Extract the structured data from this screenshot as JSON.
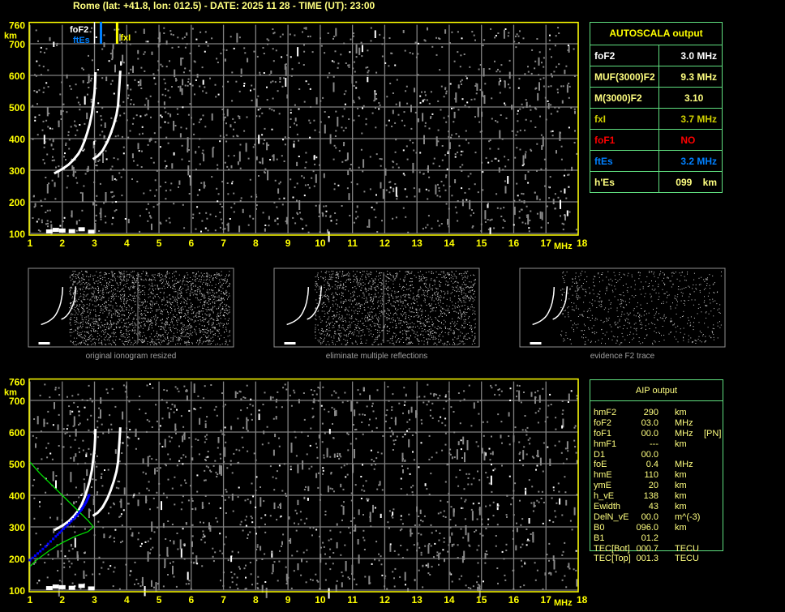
{
  "header": {
    "title": "Rome (lat: +41.8, lon: 012.5) - DATE: 2025 11 28 - TIME (UT): 23:00"
  },
  "colors": {
    "axis": "#ffff00",
    "grid": "#808080",
    "o_trace": "#ffffff",
    "foF2_marker": "#ffffff",
    "ftEs_marker": "#0080ff",
    "fxI_marker": "#ffff00",
    "profile": "#00e000",
    "aip_trace": "#0000ff",
    "table_border": "#60e080"
  },
  "chart_data": [
    {
      "type": "scatter",
      "name": "ionogram-autoscala",
      "xlim": [
        1,
        18
      ],
      "ylim": [
        100,
        760
      ],
      "xlabel": "MHz",
      "ylabel": "km",
      "xticks": [
        "1",
        "2",
        "3",
        "4",
        "5",
        "6",
        "7",
        "8",
        "9",
        "10",
        "11",
        "12",
        "13",
        "14",
        "15",
        "16",
        "17",
        "18"
      ],
      "yticks": [
        "760",
        "700",
        "600",
        "500",
        "400",
        "300",
        "200",
        "100"
      ],
      "grid": true,
      "o_trace": [
        [
          1.75,
          290
        ],
        [
          1.9,
          298
        ],
        [
          2.05,
          307
        ],
        [
          2.2,
          318
        ],
        [
          2.35,
          333
        ],
        [
          2.5,
          352
        ],
        [
          2.6,
          370
        ],
        [
          2.7,
          395
        ],
        [
          2.78,
          420
        ],
        [
          2.85,
          445
        ],
        [
          2.92,
          480
        ],
        [
          2.97,
          520
        ],
        [
          3.0,
          545
        ],
        [
          3.02,
          580
        ],
        [
          3.03,
          610
        ]
      ],
      "x_trace": [
        [
          2.95,
          335
        ],
        [
          3.1,
          345
        ],
        [
          3.25,
          362
        ],
        [
          3.4,
          390
        ],
        [
          3.5,
          415
        ],
        [
          3.6,
          445
        ],
        [
          3.68,
          475
        ],
        [
          3.73,
          505
        ],
        [
          3.75,
          535
        ],
        [
          3.78,
          580
        ],
        [
          3.8,
          615
        ]
      ],
      "es_trace": [
        [
          1.6,
          105
        ],
        [
          1.8,
          110
        ],
        [
          2.0,
          108
        ],
        [
          2.3,
          106
        ],
        [
          2.6,
          112
        ],
        [
          2.9,
          104
        ]
      ],
      "markers": [
        {
          "label": "foF2",
          "freq": 3.0
        },
        {
          "label": "ftEs",
          "freq": 3.2
        },
        {
          "label": "fxI",
          "freq": 3.7
        }
      ]
    },
    {
      "type": "line",
      "name": "ionogram-aip",
      "xlim": [
        1,
        18
      ],
      "ylim": [
        100,
        760
      ],
      "xlabel": "MHz",
      "ylabel": "km",
      "xticks": [
        "1",
        "2",
        "3",
        "4",
        "5",
        "6",
        "7",
        "8",
        "9",
        "10",
        "11",
        "12",
        "13",
        "14",
        "15",
        "16",
        "17",
        "18"
      ],
      "yticks": [
        "760",
        "700",
        "600",
        "500",
        "400",
        "300",
        "200",
        "100"
      ],
      "grid": true,
      "profile": [
        [
          1.0,
          505
        ],
        [
          1.3,
          470
        ],
        [
          1.7,
          430
        ],
        [
          2.1,
          390
        ],
        [
          2.5,
          350
        ],
        [
          2.8,
          320
        ],
        [
          2.97,
          300
        ],
        [
          2.8,
          285
        ],
        [
          2.4,
          270
        ],
        [
          2.0,
          250
        ],
        [
          1.6,
          225
        ],
        [
          1.2,
          195
        ],
        [
          1.0,
          175
        ]
      ],
      "aip_trace": [
        [
          1.0,
          195
        ],
        [
          1.4,
          230
        ],
        [
          1.8,
          270
        ],
        [
          2.1,
          300
        ],
        [
          2.4,
          330
        ],
        [
          2.6,
          355
        ],
        [
          2.75,
          380
        ],
        [
          2.85,
          405
        ]
      ]
    }
  ],
  "thumbnails": [
    {
      "caption": "original ionogram resized"
    },
    {
      "caption": "eliminate multiple reflections"
    },
    {
      "caption": "evidence F2 trace"
    }
  ],
  "autoscala": {
    "title": "AUTOSCALA output",
    "rows": [
      {
        "key": "foF2",
        "value": "3.0 MHz",
        "color": "#ffffff"
      },
      {
        "key": "MUF(3000)F2",
        "value": "9.3 MHz",
        "color": "#ffff80"
      },
      {
        "key": "M(3000)F2",
        "value": "3.10     ",
        "color": "#ffff80"
      },
      {
        "key": "fxI",
        "value": "3.7 MHz",
        "color": "#d0d000"
      },
      {
        "key": "foF1",
        "value": "NO        ",
        "color": "#ff0000"
      },
      {
        "key": "ftEs",
        "value": "3.2 MHz",
        "color": "#0080ff"
      },
      {
        "key": "h'Es",
        "value": "099    km",
        "color": "#ffff80"
      }
    ]
  },
  "aip": {
    "title": "AIP output",
    "rows": [
      {
        "key": "hmF2",
        "value": "290",
        "unit": "km",
        "extra": ""
      },
      {
        "key": "foF2",
        "value": "03.0",
        "unit": "MHz",
        "extra": ""
      },
      {
        "key": "foF1",
        "value": "00.0",
        "unit": "MHz",
        "extra": "[PN]"
      },
      {
        "key": "hmF1",
        "value": "---",
        "unit": "km",
        "extra": ""
      },
      {
        "key": "D1",
        "value": "00.0",
        "unit": "",
        "extra": ""
      },
      {
        "key": "foE",
        "value": "0.4",
        "unit": "MHz",
        "extra": ""
      },
      {
        "key": "hmE",
        "value": "110",
        "unit": "km",
        "extra": ""
      },
      {
        "key": "ymE",
        "value": "20",
        "unit": "km",
        "extra": ""
      },
      {
        "key": "h_vE",
        "value": "138",
        "unit": "km",
        "extra": ""
      },
      {
        "key": "Ewidth",
        "value": "43",
        "unit": "km",
        "extra": ""
      },
      {
        "key": "DelN_vE",
        "value": "00.0",
        "unit": "m^(-3)",
        "extra": ""
      },
      {
        "key": "B0",
        "value": "096.0",
        "unit": "km",
        "extra": ""
      },
      {
        "key": "B1",
        "value": "01.2",
        "unit": "",
        "extra": ""
      },
      {
        "key": "TEC[Bot]",
        "value": "000.7",
        "unit": "TECU",
        "extra": ""
      },
      {
        "key": "TEC[Top]",
        "value": "001.3",
        "unit": "TECU",
        "extra": ""
      }
    ]
  }
}
